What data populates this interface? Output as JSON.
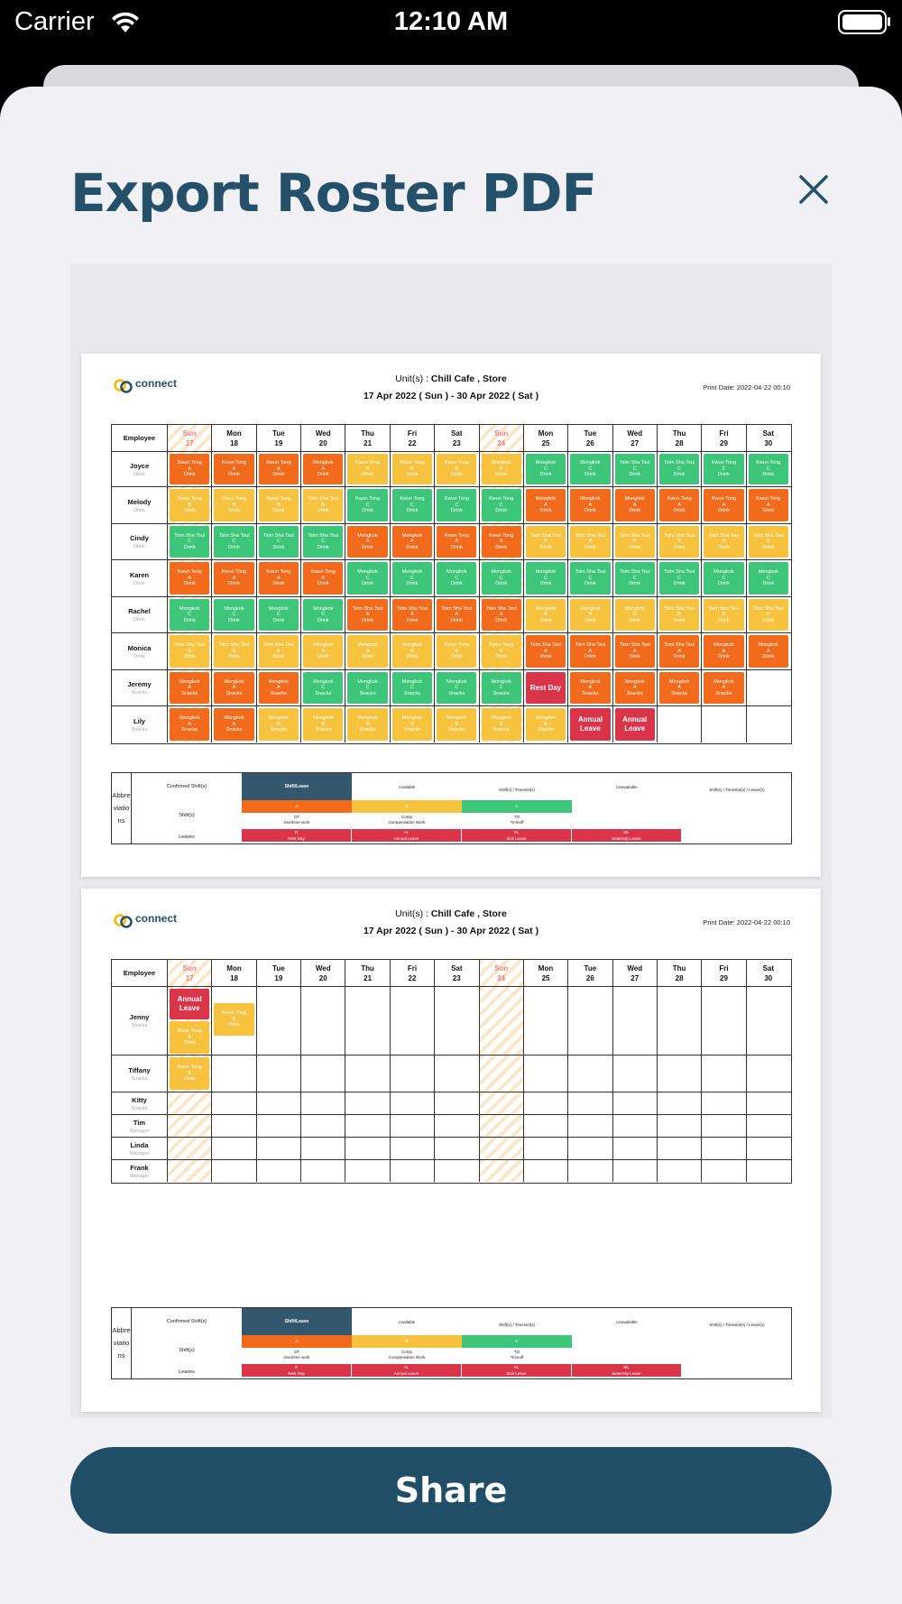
{
  "status_bar": {
    "carrier": "Carrier",
    "time": "12:10 AM"
  },
  "header": {
    "title": "Export Roster PDF"
  },
  "colors": {
    "orange": "#f26b1d",
    "yellow": "#f7c33f",
    "green": "#3dc67a",
    "red": "#d9344a",
    "navy": "#33586e",
    "title": "#24506a",
    "share_bg": "#1f4e66"
  },
  "pdf": {
    "logo_text": "connect",
    "units_label": "Unit(s) : ",
    "units_value": "Chill Cafe , Store",
    "date_range": "17 Apr 2022 ( Sun ) - 30 Apr 2022 ( Sat )",
    "print_date": "Print Date: 2022-04-22 00:10",
    "employee_header": "Employee",
    "days": [
      {
        "dow": "Sun",
        "num": "17",
        "sun": true
      },
      {
        "dow": "Mon",
        "num": "18"
      },
      {
        "dow": "Tue",
        "num": "19"
      },
      {
        "dow": "Wed",
        "num": "20"
      },
      {
        "dow": "Thu",
        "num": "21"
      },
      {
        "dow": "Fri",
        "num": "22"
      },
      {
        "dow": "Sat",
        "num": "23"
      },
      {
        "dow": "Sun",
        "num": "24",
        "sun": true
      },
      {
        "dow": "Mon",
        "num": "25"
      },
      {
        "dow": "Tue",
        "num": "26"
      },
      {
        "dow": "Wed",
        "num": "27"
      },
      {
        "dow": "Thu",
        "num": "28"
      },
      {
        "dow": "Fri",
        "num": "29"
      },
      {
        "dow": "Sat",
        "num": "30"
      }
    ],
    "page1_employees": [
      {
        "name": "Joyce",
        "role": "Drink",
        "shifts": [
          "O1",
          "O1",
          "O1",
          "O2",
          "Y1",
          "Y1",
          "Y1",
          "Y2",
          "G2",
          "G2",
          "G3",
          "G3",
          "G1",
          "G1"
        ]
      },
      {
        "name": "Melody",
        "role": "Drink",
        "shifts": [
          "Y1",
          "Y1",
          "Y1",
          "Y3",
          "G1",
          "G1",
          "G1",
          "G1",
          "O2",
          "O2",
          "O2",
          "O1",
          "O1",
          "O1"
        ]
      },
      {
        "name": "Cindy",
        "role": "Drink",
        "shifts": [
          "G3",
          "G3",
          "G3",
          "G3",
          "O2",
          "O2",
          "O1",
          "O1",
          "Y3",
          "Y3",
          "Y3",
          "Y3",
          "Y3",
          "Y3"
        ]
      },
      {
        "name": "Karen",
        "role": "Drink",
        "shifts": [
          "O1",
          "O1",
          "O1",
          "O1",
          "G2",
          "G2",
          "G2",
          "G2",
          "G2",
          "G3",
          "G3",
          "G3",
          "G2",
          "G2"
        ]
      },
      {
        "name": "Rachel",
        "role": "Drink",
        "shifts": [
          "G2",
          "G2",
          "G2",
          "G2",
          "O3",
          "O3",
          "O3",
          "O3",
          "Y2",
          "Y2",
          "Y2",
          "Y3",
          "Y3",
          "Y3"
        ]
      },
      {
        "name": "Monica",
        "role": "Drink",
        "shifts": [
          "Y3",
          "Y3",
          "Y3",
          "Y2",
          "Y2",
          "Y2",
          "Y1",
          "Y1",
          "O3",
          "O3",
          "O3",
          "O3",
          "O2",
          "O2"
        ]
      },
      {
        "name": "Jeremy",
        "role": "Snacks",
        "shifts": [
          "OS",
          "OS",
          "OS",
          "GS",
          "GS",
          "GS",
          "GS",
          "GS",
          "RD",
          "OS",
          "OS",
          "OS",
          "OS",
          ""
        ]
      },
      {
        "name": "Lily",
        "role": "Snacks",
        "shifts": [
          "OS",
          "OS",
          "YS",
          "YS",
          "YS",
          "YS",
          "YS",
          "YS",
          "YS",
          "AL",
          "AL",
          "",
          "",
          ""
        ]
      }
    ],
    "page2_employees": [
      {
        "name": "Jenny",
        "role": "Snacks",
        "shifts": [
          "AL+Y",
          "Y1",
          "",
          "",
          "",
          "",
          "",
          "",
          "",
          "",
          "",
          "",
          "",
          ""
        ]
      },
      {
        "name": "Tiffany",
        "role": "Snacks",
        "shifts": [
          "Y1",
          "",
          "",
          "",
          "",
          "",
          "",
          "",
          "",
          "",
          "",
          "",
          "",
          ""
        ]
      },
      {
        "name": "Kitty",
        "role": "Snacks",
        "shifts": [
          "",
          "",
          "",
          "",
          "",
          "",
          "",
          "",
          "",
          "",
          "",
          "",
          "",
          ""
        ]
      },
      {
        "name": "Tim",
        "role": "Manager",
        "shifts": [
          "",
          "",
          "",
          "",
          "",
          "",
          "",
          "",
          "",
          "",
          "",
          "",
          "",
          ""
        ]
      },
      {
        "name": "Linda",
        "role": "Manager",
        "shifts": [
          "",
          "",
          "",
          "",
          "",
          "",
          "",
          "",
          "",
          "",
          "",
          "",
          "",
          ""
        ]
      },
      {
        "name": "Frank",
        "role": "Manager",
        "shifts": [
          "",
          "",
          "",
          "",
          "",
          "",
          "",
          "",
          "",
          "",
          "",
          "",
          "",
          ""
        ]
      }
    ],
    "shift_labels": {
      "O1": [
        "Kwun Tong",
        "A",
        "Drink"
      ],
      "O2": [
        "Mongkok",
        "A",
        "Drink"
      ],
      "O3": [
        "Tsim Sha Tsui",
        "A",
        "Drink"
      ],
      "Y1": [
        "Kwun Tong",
        "B",
        "Drink"
      ],
      "Y2": [
        "Mongkok",
        "B",
        "Drink"
      ],
      "Y3": [
        "Tsim Sha Tsui",
        "B",
        "Drink"
      ],
      "G1": [
        "Kwun Tong",
        "C",
        "Drink"
      ],
      "G2": [
        "Mongkok",
        "C",
        "Drink"
      ],
      "G3": [
        "Tsim Sha Tsui",
        "C",
        "Drink"
      ],
      "OS": [
        "Mongkok",
        "A",
        "Snacks"
      ],
      "YS": [
        "Mongkok",
        "B",
        "Snacks"
      ],
      "GS": [
        "Mongkok",
        "C",
        "Snacks"
      ]
    },
    "rest_day": "Rest Day",
    "annual_leave": "Annual Leave",
    "abbreviations": {
      "label": "Abbre viatio ns",
      "confirmed_label": "Confirmed Shift(s)",
      "shifts_label": "Shift(s)",
      "leaves_label": "Leaves",
      "available": "Available",
      "unavailable": "Unavailable",
      "shift_leave": "Shift/Leave",
      "shift_timeslot": "Shift(s) / Timeslot(s)",
      "shift_timeslot_leave": "Shift(s) / Timeslot(s) / Leave(s)",
      "shift_letters": [
        "A",
        "B",
        "C"
      ],
      "ot": "OT",
      "ot_desc": "Overtime work",
      "comp": "Comp",
      "comp_desc": "Compensation Work",
      "to": "TO",
      "to_desc": "Timeoff",
      "leaves": [
        [
          "R",
          "Rest Day"
        ],
        [
          "AL",
          "Annual Leave"
        ],
        [
          "SL",
          "Sick Leave"
        ],
        [
          "ML",
          "Maternity Leave"
        ]
      ]
    }
  },
  "actions": {
    "share": "Share"
  }
}
